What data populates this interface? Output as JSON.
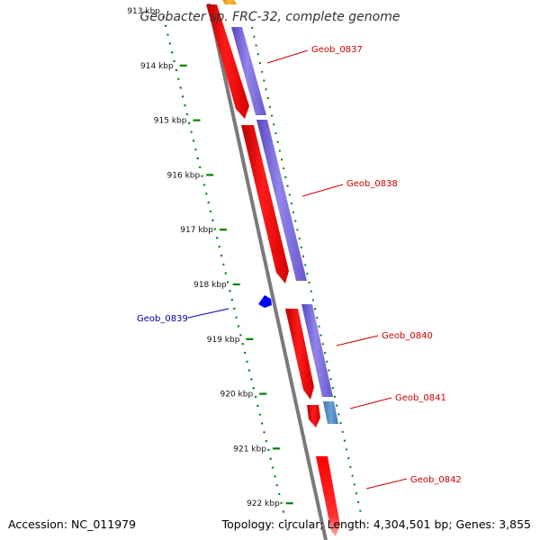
{
  "title": "Geobacter sp. FRC-32, complete genome",
  "ticks": [
    "913 kbp",
    "914 kbp",
    "915 kbp",
    "916 kbp",
    "917 kbp",
    "918 kbp",
    "919 kbp",
    "920 kbp",
    "921 kbp",
    "922 kbp"
  ],
  "genes": [
    {
      "label": "Geob_0837",
      "strand": "forward"
    },
    {
      "label": "Geob_0838",
      "strand": "forward"
    },
    {
      "label": "Geob_0839",
      "strand": "reverse"
    },
    {
      "label": "Geob_0840",
      "strand": "forward"
    },
    {
      "label": "Geob_0841",
      "strand": "forward"
    },
    {
      "label": "Geob_0842",
      "strand": "forward"
    }
  ],
  "footer": {
    "accession": "Accession: NC_011979",
    "topology": "Topology: circular; Length: 4,304,501 bp; Genes: 3,855"
  },
  "colors": {
    "forward_cds": "#ff0000",
    "cog_track": "#7b68d8",
    "cog_track_alt": "#4a86c0",
    "reverse_cds": "#0000ff",
    "forward_label": "#cc0000",
    "reverse_label": "#0000aa",
    "tick": "#008000",
    "backbone": "#777777",
    "upstream_feature": "#ffa500"
  }
}
